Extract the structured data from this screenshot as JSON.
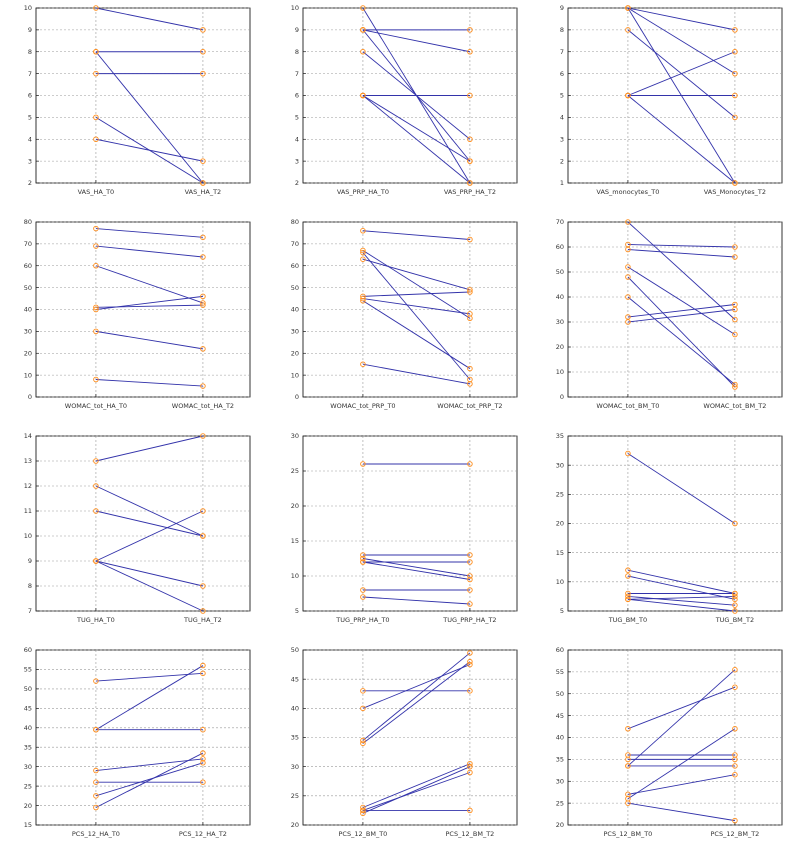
{
  "colors": {
    "line": "#3333aa",
    "marker": "#ff8c1a",
    "grid": "#9a9a9a"
  },
  "chart_data": [
    {
      "type": "line",
      "categories": [
        "VAS_HA_T0",
        "VAS_HA_T2"
      ],
      "ylim": [
        2,
        10
      ],
      "yticks": [
        2,
        3,
        4,
        5,
        6,
        7,
        8,
        9,
        10
      ],
      "grid": true,
      "series": [
        {
          "values": [
            10,
            9
          ]
        },
        {
          "values": [
            8,
            8
          ]
        },
        {
          "values": [
            7,
            7
          ]
        },
        {
          "values": [
            8,
            2
          ]
        },
        {
          "values": [
            5,
            2
          ]
        },
        {
          "values": [
            4,
            3
          ]
        }
      ]
    },
    {
      "type": "line",
      "categories": [
        "VAS_PRP_HA_T0",
        "VAS_PRP_HA_T2"
      ],
      "ylim": [
        2,
        10
      ],
      "yticks": [
        2,
        3,
        4,
        5,
        6,
        7,
        8,
        9,
        10
      ],
      "grid": true,
      "series": [
        {
          "values": [
            9,
            9
          ]
        },
        {
          "values": [
            9,
            8
          ]
        },
        {
          "values": [
            10,
            2
          ]
        },
        {
          "values": [
            9,
            3
          ]
        },
        {
          "values": [
            8,
            4
          ]
        },
        {
          "values": [
            6,
            6
          ]
        },
        {
          "values": [
            6,
            3
          ]
        },
        {
          "values": [
            6,
            2
          ]
        }
      ]
    },
    {
      "type": "line",
      "categories": [
        "VAS_monocytes_T0",
        "VAS_Monocytes_T2"
      ],
      "ylim": [
        1,
        9
      ],
      "yticks": [
        1,
        2,
        3,
        4,
        5,
        6,
        7,
        8,
        9
      ],
      "grid": true,
      "series": [
        {
          "values": [
            9,
            8
          ]
        },
        {
          "values": [
            9,
            6
          ]
        },
        {
          "values": [
            9,
            1
          ]
        },
        {
          "values": [
            8,
            4
          ]
        },
        {
          "values": [
            5,
            7
          ]
        },
        {
          "values": [
            5,
            5
          ]
        },
        {
          "values": [
            5,
            1
          ]
        }
      ]
    },
    {
      "type": "line",
      "categories": [
        "WOMAC_tot_HA_T0",
        "WOMAC_tot_HA_T2"
      ],
      "ylim": [
        0,
        80
      ],
      "yticks": [
        0,
        10,
        20,
        30,
        40,
        50,
        60,
        70,
        80
      ],
      "grid": true,
      "series": [
        {
          "values": [
            77,
            73
          ]
        },
        {
          "values": [
            69,
            64
          ]
        },
        {
          "values": [
            60,
            43
          ]
        },
        {
          "values": [
            41,
            42
          ]
        },
        {
          "values": [
            40,
            46
          ]
        },
        {
          "values": [
            30,
            22
          ]
        },
        {
          "values": [
            8,
            5
          ]
        }
      ]
    },
    {
      "type": "line",
      "categories": [
        "WOMAC_tot_PRP_T0",
        "WOMAC_tot_PRP_T2"
      ],
      "ylim": [
        0,
        80
      ],
      "yticks": [
        0,
        10,
        20,
        30,
        40,
        50,
        60,
        70,
        80
      ],
      "grid": true,
      "series": [
        {
          "values": [
            76,
            72
          ]
        },
        {
          "values": [
            67,
            36
          ]
        },
        {
          "values": [
            66,
            8
          ]
        },
        {
          "values": [
            63,
            49
          ]
        },
        {
          "values": [
            46,
            48
          ]
        },
        {
          "values": [
            45,
            38
          ]
        },
        {
          "values": [
            44,
            13
          ]
        },
        {
          "values": [
            15,
            6
          ]
        }
      ]
    },
    {
      "type": "line",
      "categories": [
        "WOMAC_tot_BM_T0",
        "WOMAC_tot_BM_T2"
      ],
      "ylim": [
        0,
        70
      ],
      "yticks": [
        0,
        10,
        20,
        30,
        40,
        50,
        60,
        70
      ],
      "grid": true,
      "series": [
        {
          "values": [
            70,
            31
          ]
        },
        {
          "values": [
            61,
            60
          ]
        },
        {
          "values": [
            59,
            56
          ]
        },
        {
          "values": [
            52,
            25
          ]
        },
        {
          "values": [
            48,
            4
          ]
        },
        {
          "values": [
            40,
            5
          ]
        },
        {
          "values": [
            32,
            37
          ]
        },
        {
          "values": [
            30,
            35
          ]
        }
      ]
    },
    {
      "type": "line",
      "categories": [
        "TUG_HA_T0",
        "TUG_HA_T2"
      ],
      "ylim": [
        7,
        14
      ],
      "yticks": [
        7,
        8,
        9,
        10,
        11,
        12,
        13,
        14
      ],
      "grid": true,
      "series": [
        {
          "values": [
            13,
            14
          ]
        },
        {
          "values": [
            12,
            10
          ]
        },
        {
          "values": [
            11,
            10
          ]
        },
        {
          "values": [
            9,
            11
          ]
        },
        {
          "values": [
            9,
            8
          ]
        },
        {
          "values": [
            9,
            7
          ]
        }
      ]
    },
    {
      "type": "line",
      "categories": [
        "TUG_PRP_HA_T0",
        "TUG_PRP_HA_T2"
      ],
      "ylim": [
        5,
        30
      ],
      "yticks": [
        5,
        10,
        15,
        20,
        25,
        30
      ],
      "grid": true,
      "series": [
        {
          "values": [
            26,
            26
          ]
        },
        {
          "values": [
            13,
            13
          ]
        },
        {
          "values": [
            12.5,
            10
          ]
        },
        {
          "values": [
            12,
            12
          ]
        },
        {
          "values": [
            12,
            9.5
          ]
        },
        {
          "values": [
            8,
            8
          ]
        },
        {
          "values": [
            7,
            6
          ]
        }
      ]
    },
    {
      "type": "line",
      "categories": [
        "TUG_BM_T0",
        "TUG_BM_T2"
      ],
      "ylim": [
        5,
        35
      ],
      "yticks": [
        5,
        10,
        15,
        20,
        25,
        30,
        35
      ],
      "grid": true,
      "series": [
        {
          "values": [
            32,
            20
          ]
        },
        {
          "values": [
            12,
            8
          ]
        },
        {
          "values": [
            11,
            7
          ]
        },
        {
          "values": [
            8,
            8
          ]
        },
        {
          "values": [
            7.5,
            6
          ]
        },
        {
          "values": [
            7,
            7.5
          ]
        },
        {
          "values": [
            7,
            5
          ]
        }
      ]
    },
    {
      "type": "line",
      "categories": [
        "PCS_12_HA_T0",
        "PCS_12_HA_T2"
      ],
      "ylim": [
        15,
        60
      ],
      "yticks": [
        15,
        20,
        25,
        30,
        35,
        40,
        45,
        50,
        55,
        60
      ],
      "grid": true,
      "series": [
        {
          "values": [
            52,
            54
          ]
        },
        {
          "values": [
            39.5,
            39.5
          ]
        },
        {
          "values": [
            39.5,
            56
          ]
        },
        {
          "values": [
            29,
            32
          ]
        },
        {
          "values": [
            26,
            26
          ]
        },
        {
          "values": [
            22.5,
            31
          ]
        },
        {
          "values": [
            19.5,
            33.5
          ]
        }
      ]
    },
    {
      "type": "line",
      "categories": [
        "PCS_12_BM_T0",
        "PCS_12_BM_T2"
      ],
      "ylim": [
        20,
        50
      ],
      "yticks": [
        20,
        25,
        30,
        35,
        40,
        45,
        50
      ],
      "grid": true,
      "series": [
        {
          "values": [
            43,
            43
          ]
        },
        {
          "values": [
            40,
            47.5
          ]
        },
        {
          "values": [
            34.5,
            49.5
          ]
        },
        {
          "values": [
            34,
            48
          ]
        },
        {
          "values": [
            23,
            30.5
          ]
        },
        {
          "values": [
            22.5,
            29
          ]
        },
        {
          "values": [
            22.5,
            22.5
          ]
        },
        {
          "values": [
            22,
            30
          ]
        }
      ]
    },
    {
      "type": "line",
      "categories": [
        "PCS_12_BM_T0",
        "PCS_12_BM_T2"
      ],
      "ylim": [
        20,
        60
      ],
      "yticks": [
        20,
        25,
        30,
        35,
        40,
        45,
        50,
        55,
        60
      ],
      "grid": true,
      "series": [
        {
          "values": [
            42,
            51.5
          ]
        },
        {
          "values": [
            36,
            36
          ]
        },
        {
          "values": [
            35,
            35
          ]
        },
        {
          "values": [
            33.5,
            33.5
          ]
        },
        {
          "values": [
            33.5,
            55.5
          ]
        },
        {
          "values": [
            27,
            31.5
          ]
        },
        {
          "values": [
            26,
            42
          ]
        },
        {
          "values": [
            25,
            21
          ]
        }
      ]
    }
  ]
}
